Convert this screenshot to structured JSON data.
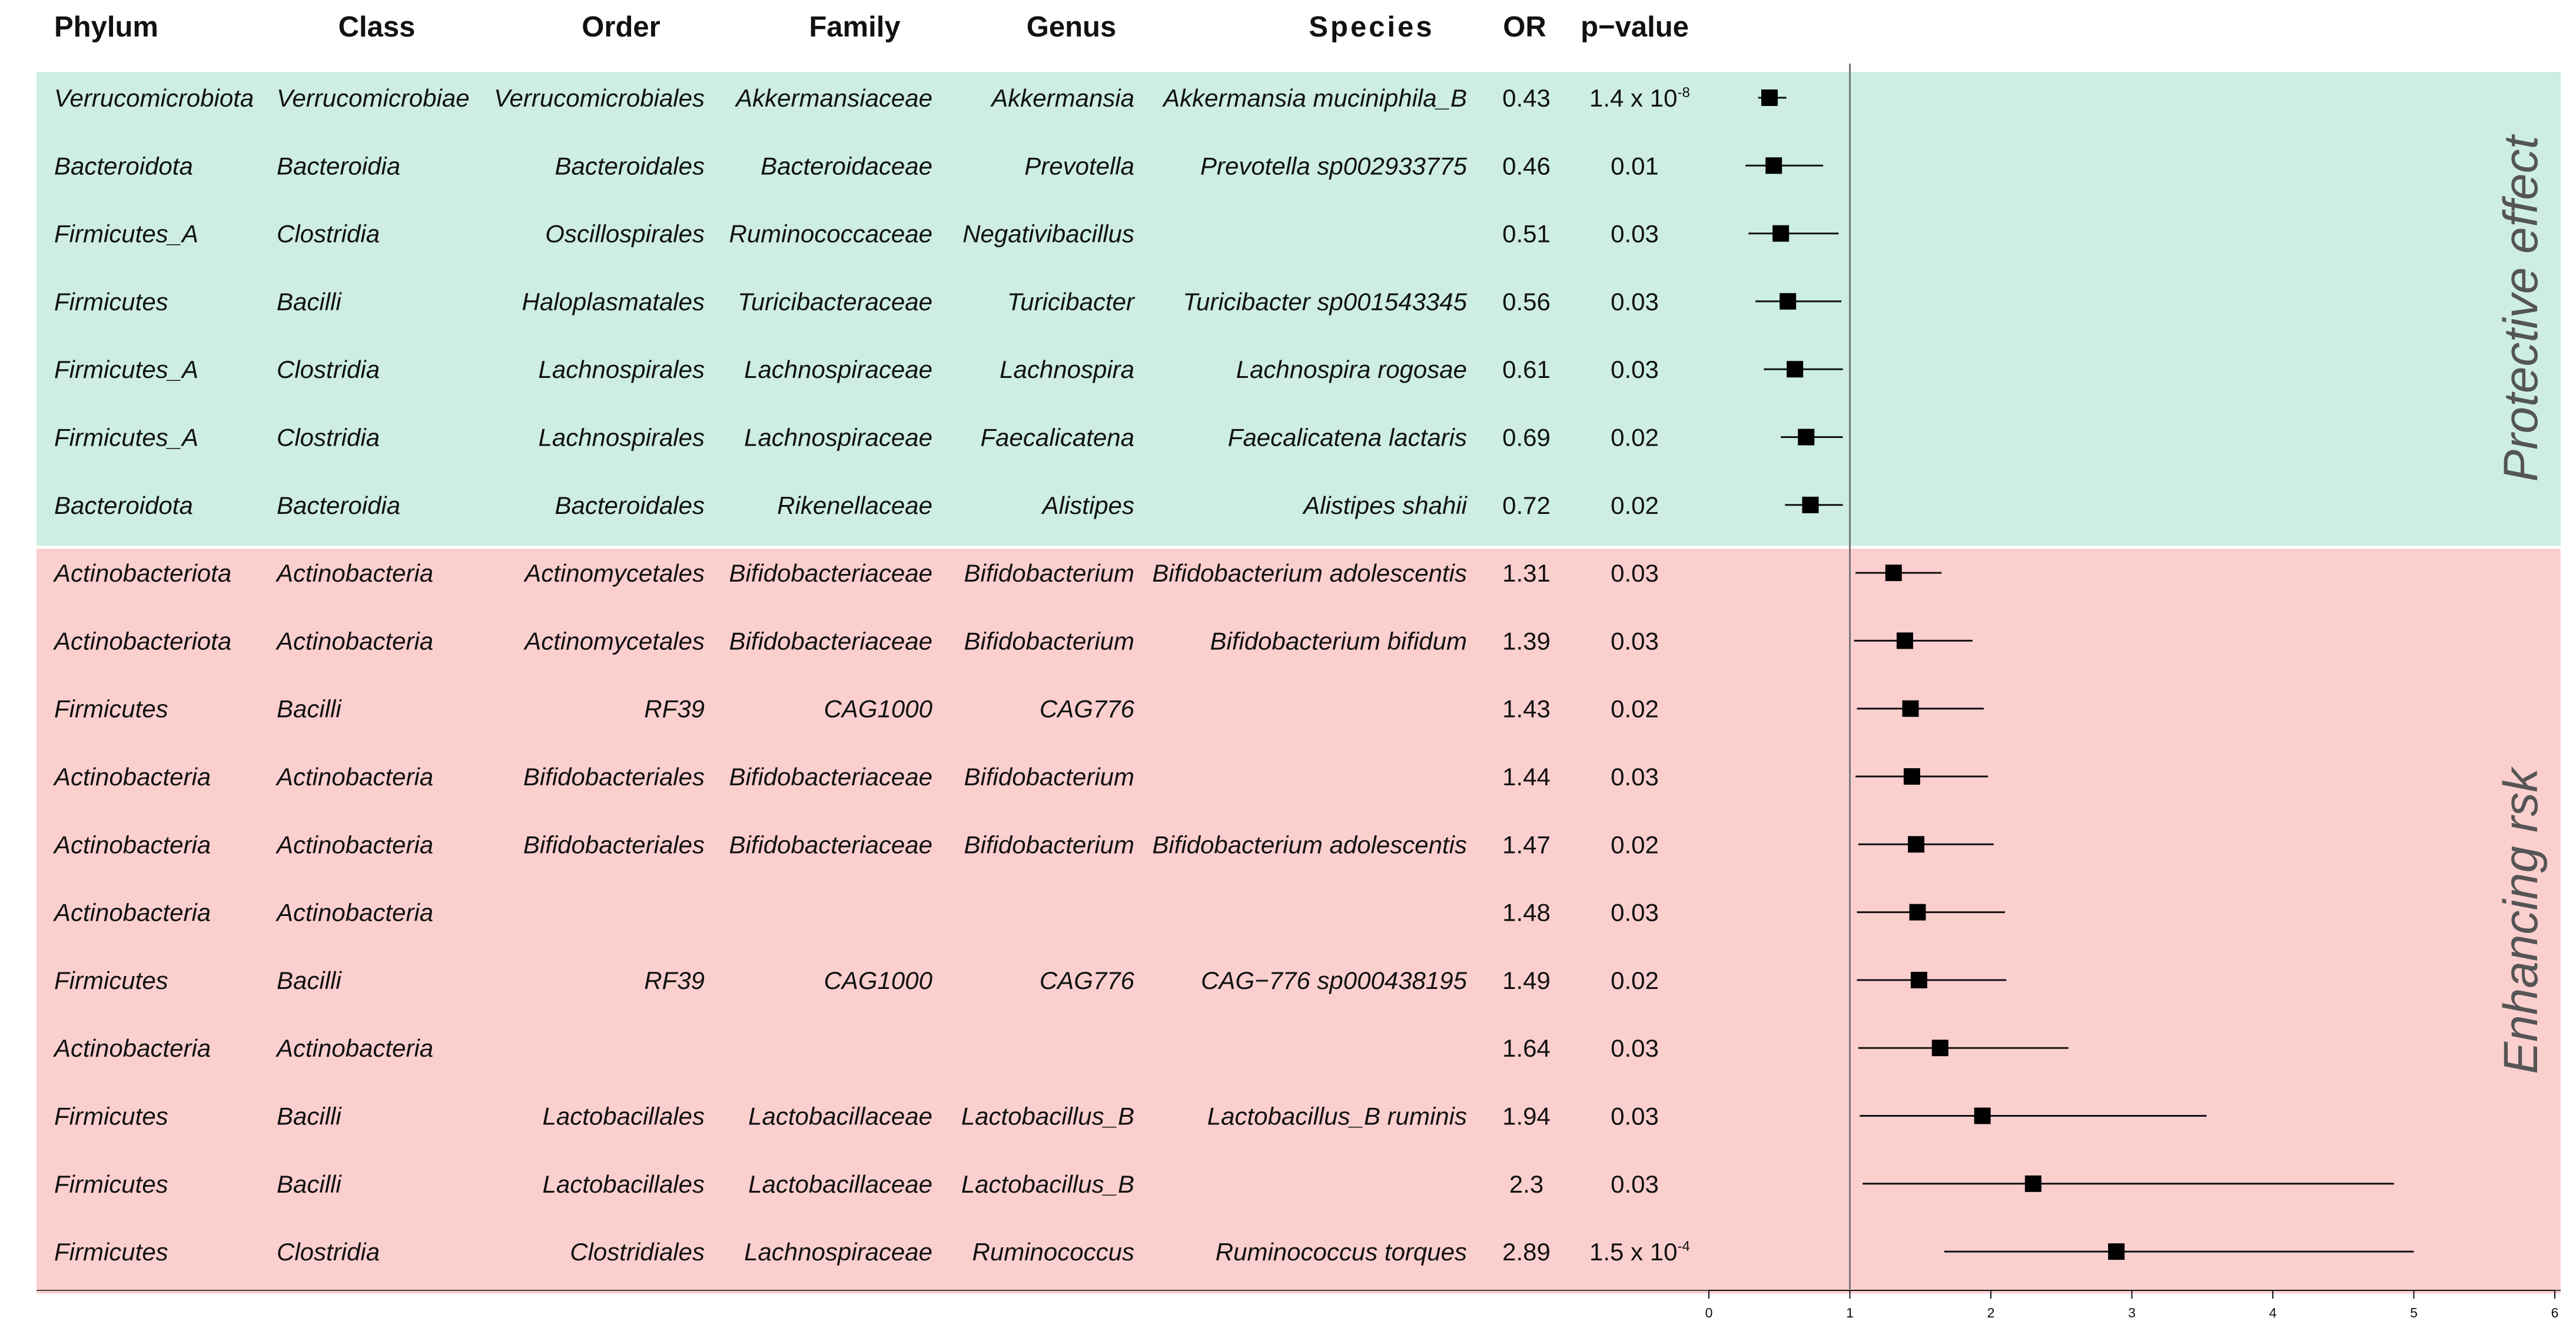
{
  "chart_data": {
    "type": "forest",
    "headers": [
      "Phylum",
      "Class",
      "Order",
      "Family",
      "Genus",
      "Species",
      "OR",
      "p−value"
    ],
    "sections": [
      {
        "label": "Protective effect",
        "color": "#cdeee0"
      },
      {
        "label": "Enhancing rsk",
        "color": "#fccfcf"
      }
    ],
    "rows": [
      {
        "section": 0,
        "phylum": "Verrucomicrobiota",
        "class": "Verrucomicrobiae",
        "order": "Verrucomicrobiales",
        "family": "Akkermansiaceae",
        "genus": "Akkermansia",
        "species": "Akkermansia muciniphila_B",
        "or_label": "0.43",
        "p_base": "1.4 x 10",
        "p_exp": "-8",
        "or": 0.43,
        "ci": [
          0.35,
          0.55
        ]
      },
      {
        "section": 0,
        "phylum": "Bacteroidota",
        "class": "Bacteroidia",
        "order": "Bacteroidales",
        "family": "Bacteroidaceae",
        "genus": "Prevotella",
        "species": "Prevotella sp002933775",
        "or_label": "0.46",
        "p_base": "0.01",
        "p_exp": "",
        "or": 0.46,
        "ci": [
          0.26,
          0.81
        ]
      },
      {
        "section": 0,
        "phylum": "Firmicutes_A",
        "class": "Clostridia",
        "order": "Oscillospirales",
        "family": "Ruminococcaceae",
        "genus": "Negativibacillus",
        "species": "",
        "or_label": "0.51",
        "p_base": "0.03",
        "p_exp": "",
        "or": 0.51,
        "ci": [
          0.28,
          0.92
        ]
      },
      {
        "section": 0,
        "phylum": "Firmicutes",
        "class": "Bacilli",
        "order": "Haloplasmatales",
        "family": "Turicibacteraceae",
        "genus": "Turicibacter",
        "species": "Turicibacter sp001543345",
        "or_label": "0.56",
        "p_base": "0.03",
        "p_exp": "",
        "or": 0.56,
        "ci": [
          0.33,
          0.94
        ]
      },
      {
        "section": 0,
        "phylum": "Firmicutes_A",
        "class": "Clostridia",
        "order": "Lachnospirales",
        "family": "Lachnospiraceae",
        "genus": "Lachnospira",
        "species": "Lachnospira rogosae",
        "or_label": "0.61",
        "p_base": "0.03",
        "p_exp": "",
        "or": 0.61,
        "ci": [
          0.39,
          0.95
        ]
      },
      {
        "section": 0,
        "phylum": "Firmicutes_A",
        "class": "Clostridia",
        "order": "Lachnospirales",
        "family": "Lachnospiraceae",
        "genus": "Faecalicatena",
        "species": "Faecalicatena lactaris",
        "or_label": "0.69",
        "p_base": "0.02",
        "p_exp": "",
        "or": 0.69,
        "ci": [
          0.51,
          0.95
        ]
      },
      {
        "section": 0,
        "phylum": "Bacteroidota",
        "class": "Bacteroidia",
        "order": "Bacteroidales",
        "family": "Rikenellaceae",
        "genus": "Alistipes",
        "species": "Alistipes shahii",
        "or_label": "0.72",
        "p_base": "0.02",
        "p_exp": "",
        "or": 0.72,
        "ci": [
          0.54,
          0.95
        ]
      },
      {
        "section": 1,
        "phylum": "Actinobacteriota",
        "class": "Actinobacteria",
        "order": "Actinomycetales",
        "family": "Bifidobacteriaceae",
        "genus": "Bifidobacterium",
        "species": "Bifidobacterium adolescentis",
        "or_label": "1.31",
        "p_base": "0.03",
        "p_exp": "",
        "or": 1.31,
        "ci": [
          1.04,
          1.65
        ]
      },
      {
        "section": 1,
        "phylum": "Actinobacteriota",
        "class": "Actinobacteria",
        "order": "Actinomycetales",
        "family": "Bifidobacteriaceae",
        "genus": "Bifidobacterium",
        "species": "Bifidobacterium bifidum",
        "or_label": "1.39",
        "p_base": "0.03",
        "p_exp": "",
        "or": 1.39,
        "ci": [
          1.03,
          1.87
        ]
      },
      {
        "section": 1,
        "phylum": "Firmicutes",
        "class": "Bacilli",
        "order": "RF39",
        "family": "CAG1000",
        "genus": "CAG776",
        "species": "",
        "or_label": "1.43",
        "p_base": "0.02",
        "p_exp": "",
        "or": 1.43,
        "ci": [
          1.05,
          1.95
        ]
      },
      {
        "section": 1,
        "phylum": "Actinobacteria",
        "class": "Actinobacteria",
        "order": "Bifidobacteriales",
        "family": "Bifidobacteriaceae",
        "genus": "Bifidobacterium",
        "species": "",
        "or_label": "1.44",
        "p_base": "0.03",
        "p_exp": "",
        "or": 1.44,
        "ci": [
          1.04,
          1.98
        ]
      },
      {
        "section": 1,
        "phylum": "Actinobacteria",
        "class": "Actinobacteria",
        "order": "Bifidobacteriales",
        "family": "Bifidobacteriaceae",
        "genus": "Bifidobacterium",
        "species": "Bifidobacterium adolescentis",
        "or_label": "1.47",
        "p_base": "0.02",
        "p_exp": "",
        "or": 1.47,
        "ci": [
          1.06,
          2.02
        ]
      },
      {
        "section": 1,
        "phylum": "Actinobacteria",
        "class": "Actinobacteria",
        "order": "",
        "family": "",
        "genus": "",
        "species": "",
        "or_label": "1.48",
        "p_base": "0.03",
        "p_exp": "",
        "or": 1.48,
        "ci": [
          1.05,
          2.1
        ]
      },
      {
        "section": 1,
        "phylum": "Firmicutes",
        "class": "Bacilli",
        "order": "RF39",
        "family": "CAG1000",
        "genus": "CAG776",
        "species": "CAG−776 sp000438195",
        "or_label": "1.49",
        "p_base": "0.02",
        "p_exp": "",
        "or": 1.49,
        "ci": [
          1.05,
          2.11
        ]
      },
      {
        "section": 1,
        "phylum": "Actinobacteria",
        "class": "Actinobacteria",
        "order": "",
        "family": "",
        "genus": "",
        "species": "",
        "or_label": "1.64",
        "p_base": "0.03",
        "p_exp": "",
        "or": 1.64,
        "ci": [
          1.06,
          2.55
        ]
      },
      {
        "section": 1,
        "phylum": "Firmicutes",
        "class": "Bacilli",
        "order": "Lactobacillales",
        "family": "Lactobacillaceae",
        "genus": "Lactobacillus_B",
        "species": "Lactobacillus_B ruminis",
        "or_label": "1.94",
        "p_base": "0.03",
        "p_exp": "",
        "or": 1.94,
        "ci": [
          1.07,
          3.53
        ]
      },
      {
        "section": 1,
        "phylum": "Firmicutes",
        "class": "Bacilli",
        "order": "Lactobacillales",
        "family": "Lactobacillaceae",
        "genus": "Lactobacillus_B",
        "species": "",
        "or_label": "2.3",
        "p_base": "0.03",
        "p_exp": "",
        "or": 2.3,
        "ci": [
          1.09,
          4.86
        ]
      },
      {
        "section": 1,
        "phylum": "Firmicutes",
        "class": "Clostridia",
        "order": "Clostridiales",
        "family": "Lachnospiraceae",
        "genus": "Ruminococcus",
        "species": "Ruminococcus torques",
        "or_label": "2.89",
        "p_base": "1.5 x 10",
        "p_exp": "-4",
        "or": 2.89,
        "ci": [
          1.67,
          5.0
        ]
      }
    ],
    "x_axis": {
      "ticks": [
        0,
        1,
        2,
        3,
        4,
        5,
        6
      ],
      "range": [
        0,
        6
      ],
      "reference_line": 1
    },
    "grid": false
  }
}
